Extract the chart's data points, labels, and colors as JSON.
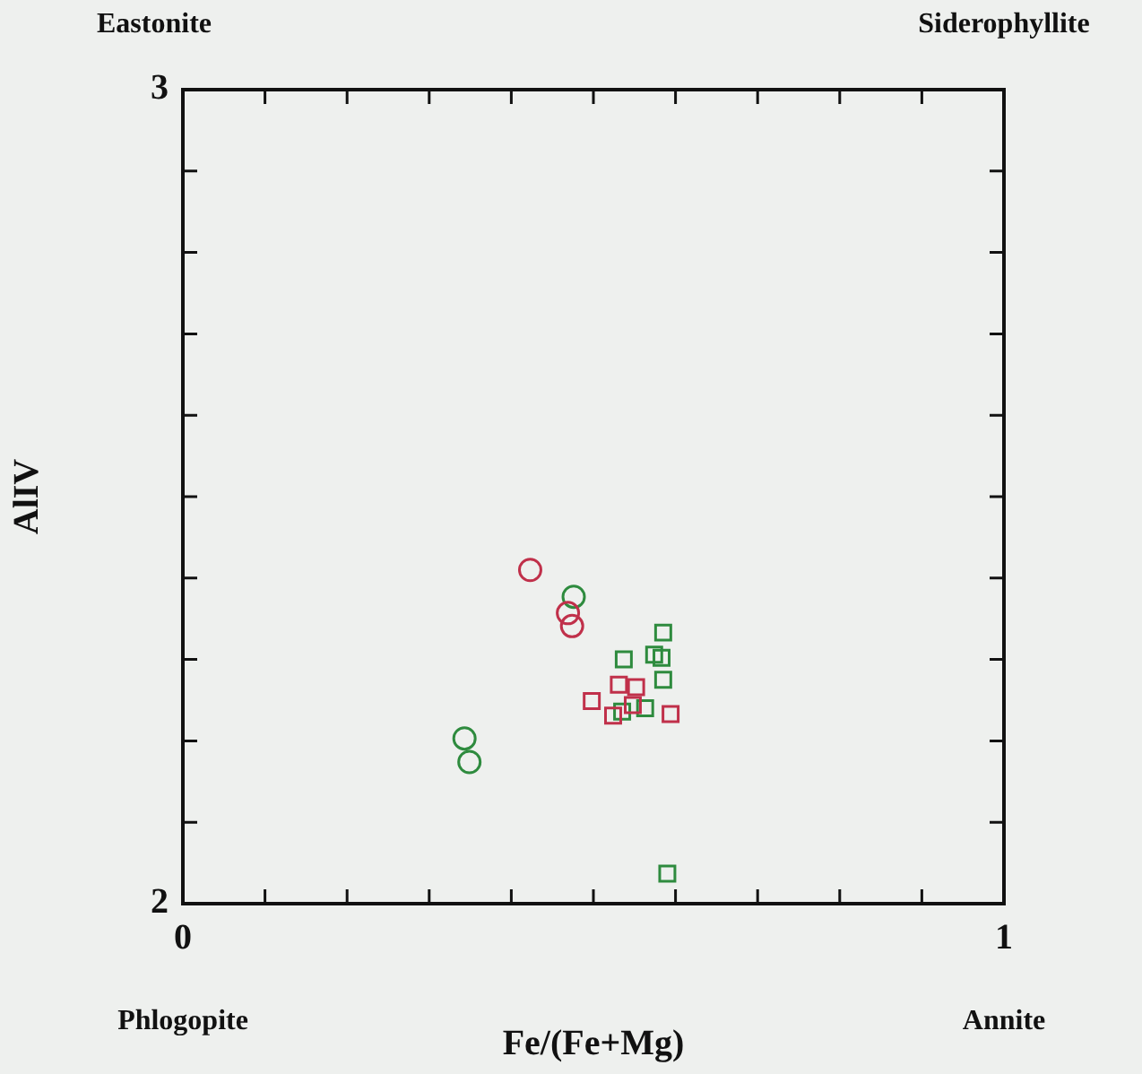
{
  "chart_data": {
    "type": "scatter",
    "xlabel": "Fe/(Fe+Mg)",
    "ylabel": "AlIV",
    "xlim": [
      0,
      1
    ],
    "ylim": [
      2,
      3
    ],
    "xticks": [
      0,
      {
        "value": 0.1,
        "label": null
      },
      {
        "value": 0.2,
        "label": null
      },
      {
        "value": 0.3,
        "label": null
      },
      {
        "value": 0.4,
        "label": null
      },
      {
        "value": 0.5,
        "label": null
      },
      {
        "value": 0.6,
        "label": null
      },
      {
        "value": 0.7,
        "label": null
      },
      {
        "value": 0.8,
        "label": null
      },
      {
        "value": 0.9,
        "label": null
      },
      1
    ],
    "yticks": [
      2,
      {
        "value": 2.1,
        "label": null
      },
      {
        "value": 2.2,
        "label": null
      },
      {
        "value": 2.3,
        "label": null
      },
      {
        "value": 2.4,
        "label": null
      },
      {
        "value": 2.5,
        "label": null
      },
      {
        "value": 2.6,
        "label": null
      },
      {
        "value": 2.7,
        "label": null
      },
      {
        "value": 2.8,
        "label": null
      },
      {
        "value": 2.9,
        "label": null
      },
      3
    ],
    "grid": false,
    "legend": false,
    "annotations": [
      "Eastonite",
      "Siderophyllite",
      "Phlogopite",
      "Annite"
    ],
    "series": [
      {
        "color": "#c0304a",
        "marker": "circle",
        "x": [
          0.423,
          0.469,
          0.474
        ],
        "values": [
          2.41,
          2.357,
          2.341
        ]
      },
      {
        "color": "#2e8b3e",
        "marker": "circle",
        "x": [
          0.476,
          0.343,
          0.349
        ],
        "values": [
          2.377,
          2.203,
          2.174
        ]
      },
      {
        "color": "#c0304a",
        "marker": "square",
        "x": [
          0.531,
          0.552,
          0.498,
          0.524,
          0.548,
          0.594
        ],
        "values": [
          2.269,
          2.266,
          2.249,
          2.231,
          2.244,
          2.233
        ]
      },
      {
        "color": "#2e8b3e",
        "marker": "square",
        "x": [
          0.585,
          0.537,
          0.583,
          0.585,
          0.574,
          0.535,
          0.563,
          0.59
        ],
        "values": [
          2.333,
          2.3,
          2.302,
          2.275,
          2.306,
          2.236,
          2.24,
          2.037
        ]
      }
    ]
  }
}
